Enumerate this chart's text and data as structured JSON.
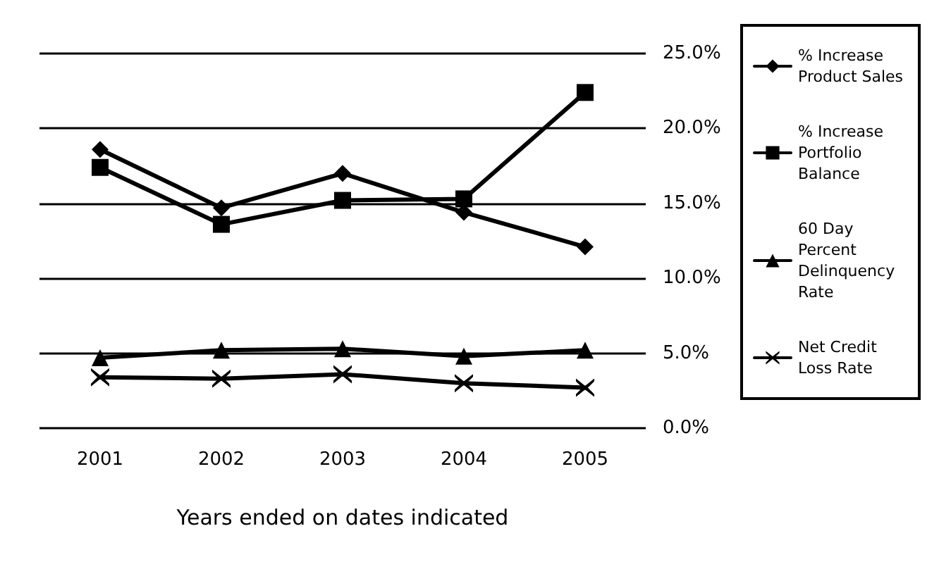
{
  "chart_data": {
    "type": "line",
    "xlabel": "Years ended on dates indicated",
    "categories": [
      "2001",
      "2002",
      "2003",
      "2004",
      "2005"
    ],
    "series": [
      {
        "name": "% Increase Product Sales",
        "color": "#000000",
        "marker": "diamond",
        "values": [
          18.6,
          14.7,
          17.0,
          14.4,
          12.1
        ]
      },
      {
        "name": "% Increase Portfolio Balance",
        "color": "#000000",
        "marker": "square",
        "values": [
          17.4,
          13.6,
          15.2,
          15.3,
          22.4
        ]
      },
      {
        "name": "60 Day Percent Delinquency Rate",
        "color": "#000000",
        "marker": "triangle",
        "values": [
          4.7,
          5.2,
          5.3,
          4.8,
          5.2
        ]
      },
      {
        "name": "Net Credit Loss Rate",
        "color": "#000000",
        "marker": "cross",
        "values": [
          3.4,
          3.3,
          3.6,
          3.0,
          2.7
        ]
      }
    ],
    "ylim": [
      0,
      25
    ],
    "yticks": [
      {
        "value": 0,
        "label": "0.0%"
      },
      {
        "value": 5,
        "label": "5.0%"
      },
      {
        "value": 10,
        "label": "10.0%"
      },
      {
        "value": 15,
        "label": "15.0%"
      },
      {
        "value": 20,
        "label": "20.0%"
      },
      {
        "value": 25,
        "label": "25.0%"
      }
    ],
    "grid": "y",
    "legend": "right",
    "line_style": "solid"
  }
}
